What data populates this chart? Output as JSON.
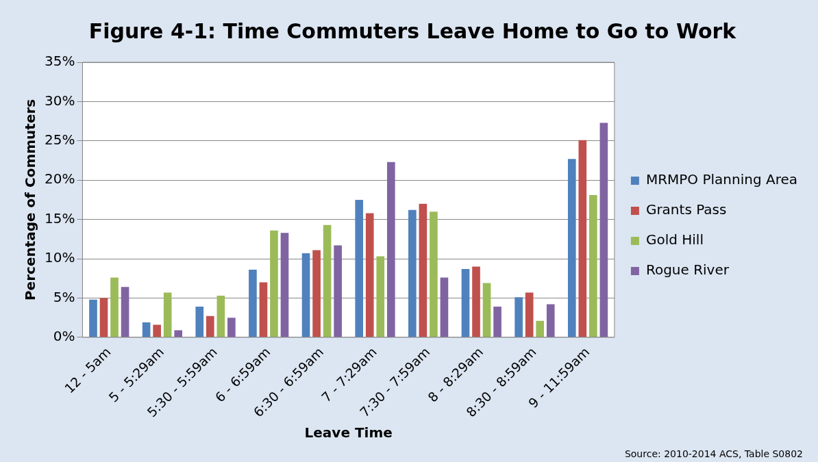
{
  "chart_data": {
    "type": "bar",
    "title": "Figure 4-1: Time Commuters Leave Home to Go to Work",
    "xlabel": "Leave Time",
    "ylabel": "Percentage of Commuters",
    "categories": [
      "12 - 5am",
      "5 - 5:29am",
      "5:30 - 5:59am",
      "6 - 6:59am",
      "6:30 - 6:59am",
      "7 - 7:29am",
      "7:30 - 7:59am",
      "8 - 8:29am",
      "8:30 - 8:59am",
      "9 - 11:59am"
    ],
    "series": [
      {
        "name": "MRMPO Planning Area",
        "color": "#4f81bd",
        "values": [
          4.8,
          1.9,
          3.9,
          8.6,
          10.7,
          17.5,
          16.2,
          8.7,
          5.1,
          22.7
        ]
      },
      {
        "name": "Grants Pass",
        "color": "#c0504d",
        "values": [
          5.0,
          1.6,
          2.7,
          7.0,
          11.1,
          15.8,
          17.0,
          9.0,
          5.7,
          25.1
        ]
      },
      {
        "name": "Gold Hill",
        "color": "#9bbb59",
        "values": [
          7.6,
          5.7,
          5.3,
          13.6,
          14.3,
          10.3,
          16.0,
          6.9,
          2.1,
          18.1
        ]
      },
      {
        "name": "Rogue River",
        "color": "#8064a2",
        "values": [
          6.4,
          0.9,
          2.5,
          13.3,
          11.7,
          22.3,
          7.6,
          3.9,
          4.2,
          27.3
        ]
      }
    ],
    "ylim": [
      0,
      35
    ],
    "yticks": [
      {
        "value": 0,
        "label": "0%"
      },
      {
        "value": 5,
        "label": "5%"
      },
      {
        "value": 10,
        "label": "10%"
      },
      {
        "value": 15,
        "label": "15%"
      },
      {
        "value": 20,
        "label": "20%"
      },
      {
        "value": 25,
        "label": "25%"
      },
      {
        "value": 30,
        "label": "30%"
      },
      {
        "value": 35,
        "label": "35%"
      }
    ],
    "grid": "y",
    "legend": "right",
    "annotations": [
      "Source: 2010-2014 ACS, Table S0802"
    ]
  }
}
